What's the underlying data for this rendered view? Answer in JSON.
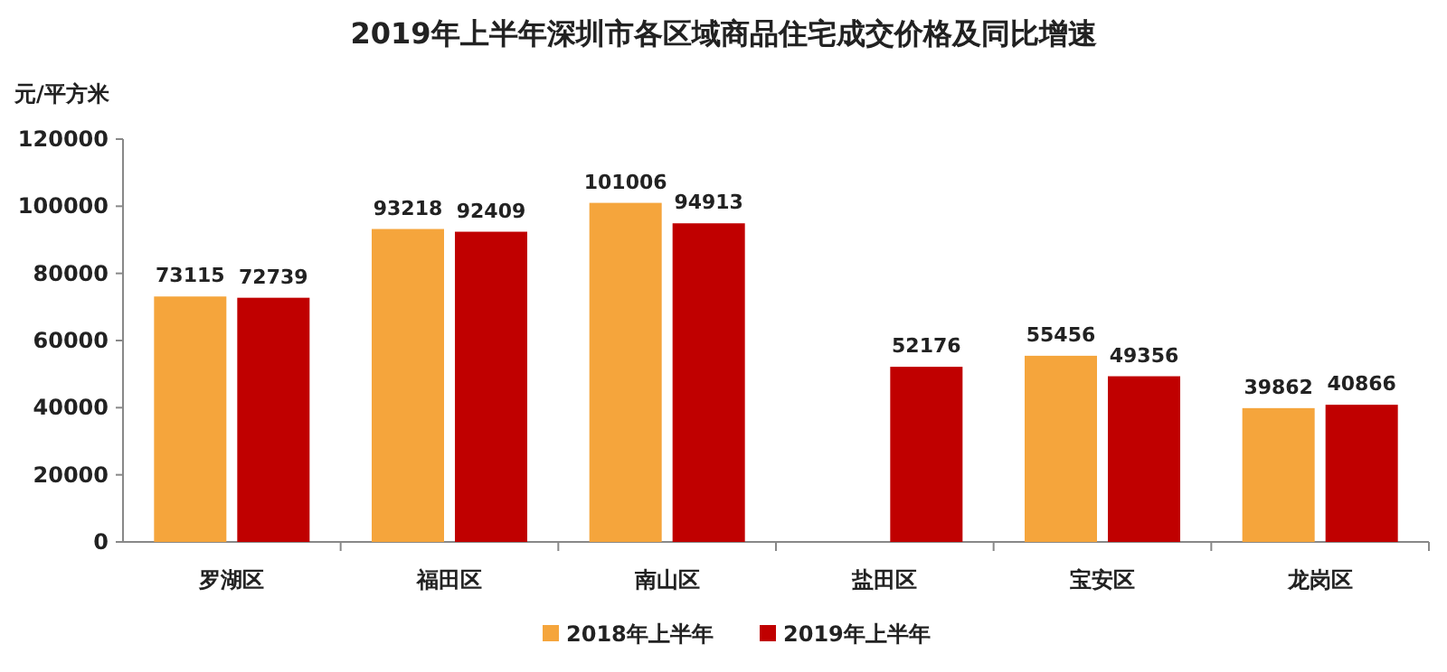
{
  "chart_data": {
    "type": "bar",
    "title": "2019年上半年深圳市各区域商品住宅成交价格及同比增速",
    "ylabel": "元/平方米",
    "categories": [
      "罗湖区",
      "福田区",
      "南山区",
      "盐田区",
      "宝安区",
      "龙岗区"
    ],
    "series": [
      {
        "name": "2018年上半年",
        "color": "#f5a53c",
        "values": [
          73115,
          93218,
          101006,
          null,
          55456,
          39862
        ]
      },
      {
        "name": "2019年上半年",
        "color": "#c00000",
        "values": [
          72739,
          92409,
          94913,
          52176,
          49356,
          40866
        ]
      }
    ],
    "ylim": [
      0,
      120000
    ],
    "yticks": [
      0,
      20000,
      40000,
      60000,
      80000,
      100000,
      120000
    ],
    "data_labels": true,
    "legend": "bottom",
    "grid": false
  }
}
